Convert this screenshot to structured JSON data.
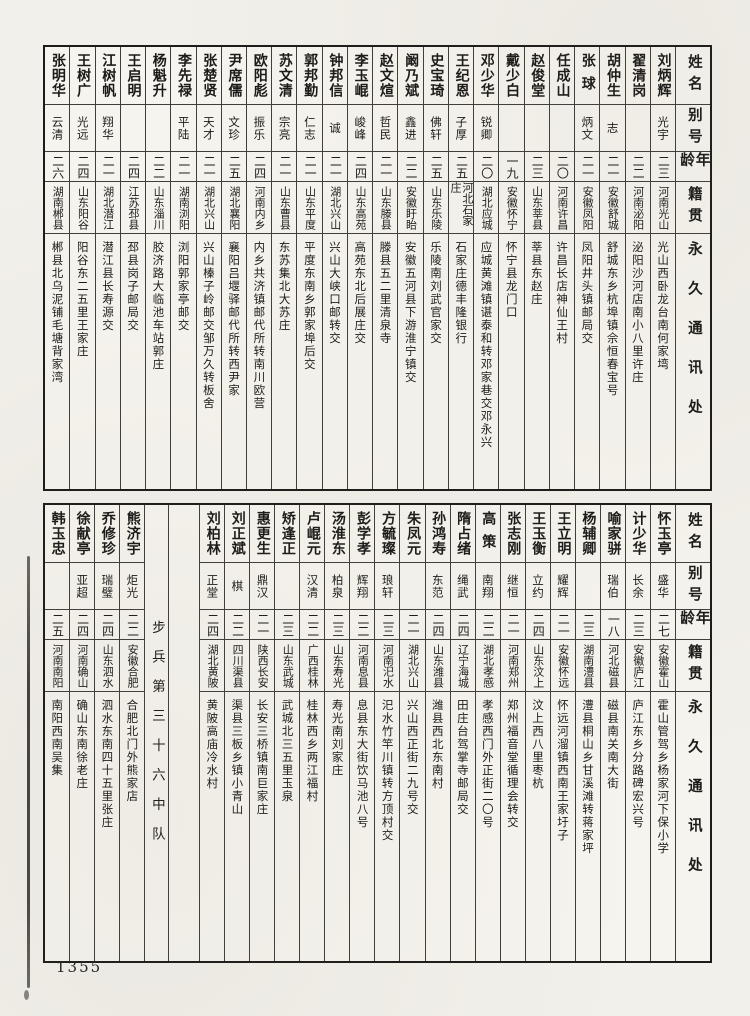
{
  "page": {
    "number": "1355"
  },
  "headers": {
    "name": "姓名",
    "alias": "别号",
    "age": "年龄",
    "native": "籍贯",
    "address": "永久通讯处"
  },
  "sections": [
    {
      "container": "roster-table-top",
      "columns": [
        {
          "type": "person",
          "name": "刘炳辉",
          "alias": "光宇",
          "age": "二三",
          "native": "河南光山",
          "address": "光山西卧龙台南何家塆"
        },
        {
          "type": "person",
          "name": "翟清岗",
          "alias": "",
          "age": "二二",
          "native": "河南泌阳",
          "address": "泌阳沙河店南小八里许庄"
        },
        {
          "type": "person",
          "name": "胡仲生",
          "alias": "志",
          "age": "二一",
          "native": "安徽舒城",
          "address": "舒城东乡杭埠镇佘恒春宝号"
        },
        {
          "type": "person",
          "name": "张球",
          "alias": "炳文",
          "age": "二一",
          "native": "安徽凤阳",
          "address": "凤阳井头镇邮局交"
        },
        {
          "type": "person",
          "name": "任成山",
          "alias": "",
          "age": "二〇",
          "native": "河南许昌",
          "address": "许昌长店神仙王村"
        },
        {
          "type": "person",
          "name": "赵俊堂",
          "alias": "",
          "age": "二三",
          "native": "山东莘县",
          "address": "莘县东赵庄"
        },
        {
          "type": "person",
          "name": "戴少白",
          "alias": "",
          "age": "一九",
          "native": "安徽怀宁",
          "address": "怀宁县龙门口"
        },
        {
          "type": "person",
          "name": "邓少华",
          "alias": "锐卿",
          "age": "二〇",
          "native": "湖北应城",
          "address": "应城黄滩镇谌泰和转邓家巷交邓永兴"
        },
        {
          "type": "person",
          "name": "王纪恩",
          "alias": "子厚",
          "age": "二五",
          "native": "河北石家庄",
          "address": "石家庄德丰隆银行"
        },
        {
          "type": "person",
          "name": "史宝琦",
          "alias": "佛轩",
          "age": "二五",
          "native": "山东乐陵",
          "address": "乐陵南刘武官家交"
        },
        {
          "type": "person",
          "name": "阚乃斌",
          "alias": "鑫进",
          "age": "二二",
          "native": "安徽盱眙",
          "address": "安徽五河县下游淮宁镇交"
        },
        {
          "type": "person",
          "name": "赵文煊",
          "alias": "哲民",
          "age": "二一",
          "native": "山东滕县",
          "address": "滕县五二里清泉寺"
        },
        {
          "type": "person",
          "name": "李玉崐",
          "alias": "峻峰",
          "age": "二四",
          "native": "山东高苑",
          "address": "高苑东北后展庄交"
        },
        {
          "type": "person",
          "name": "钟邦信",
          "alias": "诚",
          "age": "二一",
          "native": "湖北兴山",
          "address": "兴山大峡口邮转交"
        },
        {
          "type": "person",
          "name": "郭邦勤",
          "alias": "仁志",
          "age": "二一",
          "native": "山东平度",
          "address": "平度东南乡郭家埠后交"
        },
        {
          "type": "person",
          "name": "苏文清",
          "alias": "宗亮",
          "age": "二一",
          "native": "山东曹县",
          "address": "东苏集北大苏庄"
        },
        {
          "type": "person",
          "name": "欧阳彪",
          "alias": "振乐",
          "age": "二四",
          "native": "河南内乡",
          "address": "内乡共济镇邮代所转南川欧营"
        },
        {
          "type": "person",
          "name": "尹席儒",
          "alias": "文珍",
          "age": "二五",
          "native": "湖北襄阳",
          "address": "襄阳吕堰驿邮代所转西尹家"
        },
        {
          "type": "person",
          "name": "张楚贤",
          "alias": "天才",
          "age": "二一",
          "native": "湖北兴山",
          "address": "兴山榛子岭邮交邹万久转板舍"
        },
        {
          "type": "person",
          "name": "李先禄",
          "alias": "平陆",
          "age": "二一",
          "native": "湖南浏阳",
          "address": "浏阳郭家亭邮交"
        },
        {
          "type": "person",
          "name": "杨魁升",
          "alias": "",
          "age": "二二",
          "native": "山东淄川",
          "address": "胶济路大临池车站郭庄"
        },
        {
          "type": "person",
          "name": "王启明",
          "alias": "",
          "age": "二四",
          "native": "江苏邳县",
          "address": "邳县岗子邮局交"
        },
        {
          "type": "person",
          "name": "江树帆",
          "alias": "翔华",
          "age": "二一",
          "native": "湖北潜江",
          "address": "潜江县长寿源交"
        },
        {
          "type": "person",
          "name": "王树广",
          "alias": "光远",
          "age": "二四",
          "native": "山东阳谷",
          "address": "阳谷东二五里王家庄"
        },
        {
          "type": "person",
          "name": "张明华",
          "alias": "云清",
          "age": "二六",
          "native": "湖南郴县",
          "address": "郴县北乌泥铺毛塘背家湾"
        }
      ]
    },
    {
      "container": "roster-table-bottom",
      "columns": [
        {
          "type": "person",
          "name": "怀玉亭",
          "alias": "盛华",
          "age": "二七",
          "native": "安徽霍山",
          "address": "霍山管驾乡杨家河下保小学"
        },
        {
          "type": "person",
          "name": "计少华",
          "alias": "长余",
          "age": "二三",
          "native": "安徽庐江",
          "address": "庐江东乡分路碑宏兴号"
        },
        {
          "type": "person",
          "name": "喻家骈",
          "alias": "瑞伯",
          "age": "一八",
          "native": "河北磁县",
          "address": "磁县南关南大街"
        },
        {
          "type": "person",
          "name": "杨辅卿",
          "alias": "",
          "age": "二三",
          "native": "湖南澧县",
          "address": "澧县桐山乡甘溪滩转蒋家坪"
        },
        {
          "type": "person",
          "name": "王立明",
          "alias": "耀辉",
          "age": "二一",
          "native": "安徽怀远",
          "address": "怀远河溜镇西南王家圩子"
        },
        {
          "type": "person",
          "name": "王玉衡",
          "alias": "立约",
          "age": "二四",
          "native": "山东汶上",
          "address": "汶上西八里枣杭"
        },
        {
          "type": "person",
          "name": "张志刚",
          "alias": "继恒",
          "age": "二一",
          "native": "河南郑州",
          "address": "郑州福音堂循理会转交"
        },
        {
          "type": "person",
          "name": "高策",
          "alias": "南翔",
          "age": "二二",
          "native": "湖北孝感",
          "address": "孝感西门外正街二〇号"
        },
        {
          "type": "person",
          "name": "隋占绪",
          "alias": "绳武",
          "age": "二四",
          "native": "辽宁海城",
          "address": "田庄台驾掌寺邮局交"
        },
        {
          "type": "person",
          "name": "孙鸿寿",
          "alias": "东范",
          "age": "二四",
          "native": "山东潍县",
          "address": "潍县西北东南村"
        },
        {
          "type": "person",
          "name": "朱凤元",
          "alias": "",
          "age": "二一",
          "native": "湖北兴山",
          "address": "兴山西正街二九号交"
        },
        {
          "type": "person",
          "name": "方毓璨",
          "alias": "琅轩",
          "age": "二三",
          "native": "河南汜水",
          "address": "汜水竹竿川镇转方顶村交"
        },
        {
          "type": "person",
          "name": "彭学孝",
          "alias": "辉翔",
          "age": "二二",
          "native": "河南息县",
          "address": "息县东大街饮马池八号"
        },
        {
          "type": "person",
          "name": "汤淮东",
          "alias": "柏泉",
          "age": "二三",
          "native": "山东寿光",
          "address": "寿光南刘家庄"
        },
        {
          "type": "person",
          "name": "卢崐元",
          "alias": "汉清",
          "age": "二二",
          "native": "广西桂林",
          "address": "桂林西乡两江福村"
        },
        {
          "type": "person",
          "name": "矫逢正",
          "alias": "",
          "age": "二三",
          "native": "山东武城",
          "address": "武城北三五里玉泉"
        },
        {
          "type": "person",
          "name": "惠更生",
          "alias": "鼎汉",
          "age": "二一",
          "native": "陕西长安",
          "address": "长安三桥镇南巨家庄"
        },
        {
          "type": "person",
          "name": "刘正斌",
          "alias": "棋",
          "age": "二二",
          "native": "四川渠县",
          "address": "渠县三板乡镇小青山"
        },
        {
          "type": "person",
          "name": "刘柏林",
          "alias": "正堂",
          "age": "二四",
          "native": "湖北黄陂",
          "address": "黄陂高庙冷水村"
        },
        {
          "type": "blank"
        },
        {
          "type": "unit",
          "label": "步兵第三十六中队"
        },
        {
          "type": "person",
          "name": "熊济宇",
          "alias": "炬光",
          "age": "二二",
          "native": "安徽合肥",
          "address": "合肥北门外熊家店"
        },
        {
          "type": "person",
          "name": "乔修珍",
          "alias": "瑞璧",
          "age": "二四",
          "native": "山东泗水",
          "address": "泗水东南四十五里张庄"
        },
        {
          "type": "person",
          "name": "徐献亭",
          "alias": "亚超",
          "age": "二四",
          "native": "河南确山",
          "address": "确山东南徐老庄"
        },
        {
          "type": "person",
          "name": "韩玉忠",
          "alias": "",
          "age": "二五",
          "native": "河南南阳",
          "address": "南阳西南吴集"
        }
      ]
    }
  ]
}
